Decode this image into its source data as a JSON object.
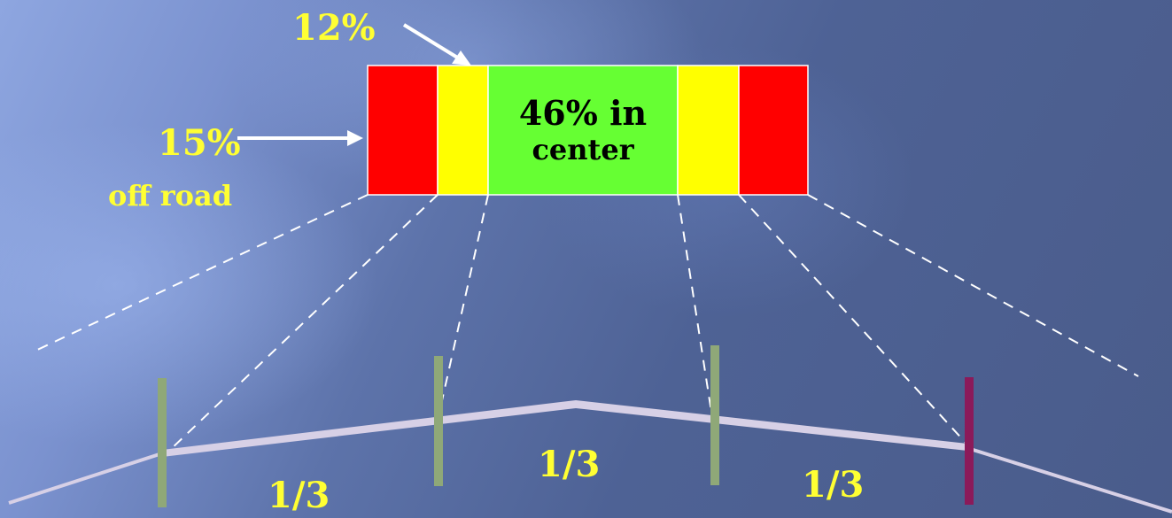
{
  "labels": {
    "top_pct": "12%",
    "side_pct": "15%",
    "side_note": "off road",
    "center_line1": "46% in",
    "center_line2": "center",
    "third_1": "1/3",
    "third_2": "1/3",
    "third_3": "1/3"
  },
  "colors": {
    "red": "#ff0000",
    "yellow": "#ffff00",
    "green": "#66ff33",
    "label_yellow": "#ffff33",
    "marker_green": "#8fa878",
    "marker_purple": "#8b1a5a",
    "road": "#d7d0e6"
  }
}
